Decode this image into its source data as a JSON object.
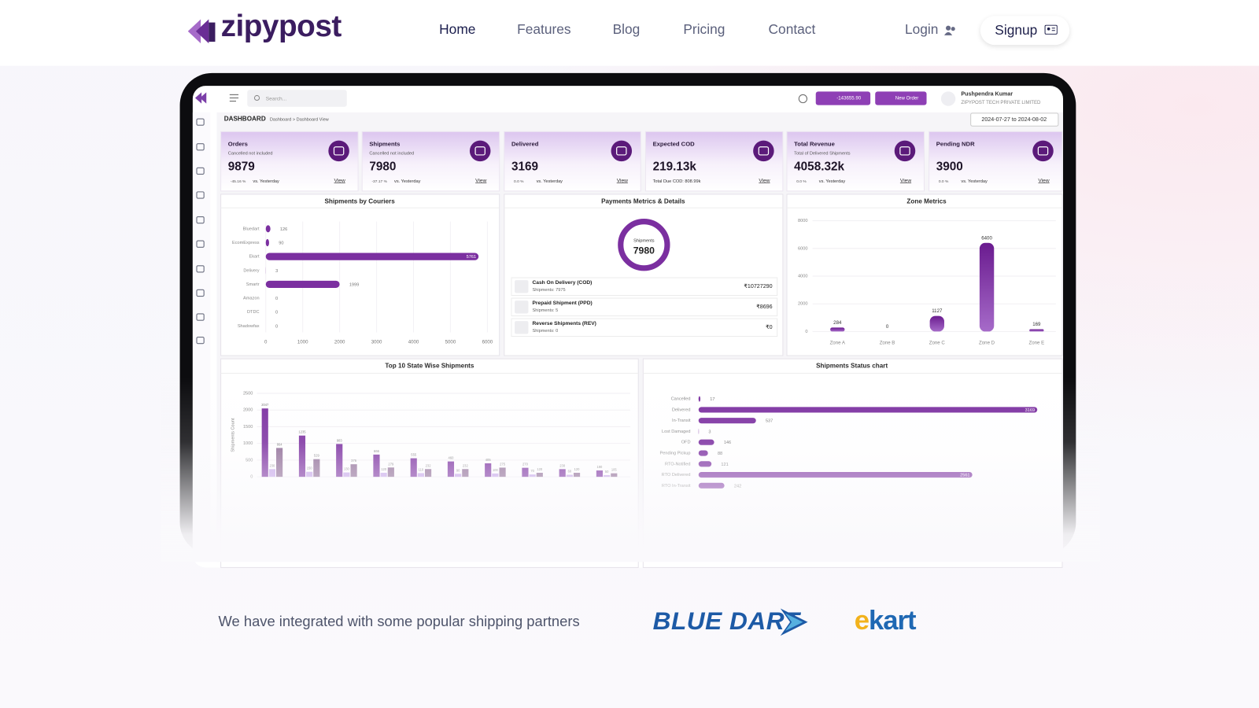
{
  "header": {
    "logo": "zipypost",
    "nav": [
      "Home",
      "Features",
      "Blog",
      "Pricing",
      "Contact"
    ],
    "login": "Login",
    "signup": "Signup"
  },
  "dashboard": {
    "search": "Search...",
    "wallet": "-143655.90",
    "new_order": "New Order",
    "user": "Pushpendra Kumar",
    "company": "ZIPYPOST TECH PRIVATE LIMITED",
    "title": "DASHBOARD",
    "breadcrumb": "Dashboard > Dashboard View",
    "date_range": "2024-07-27 to 2024-08-02",
    "cards": [
      {
        "title": "Orders",
        "subtitle": "Cancelled not included",
        "value": "9879",
        "change": "-45.16 %",
        "compare": "vs. Yesterday",
        "link": "View"
      },
      {
        "title": "Shipments",
        "subtitle": "Cancelled not included",
        "value": "7980",
        "change": "-37.17 %",
        "compare": "vs. Yesterday",
        "link": "View"
      },
      {
        "title": "Delivered",
        "value": "3169",
        "change": "0.0 %",
        "compare": "vs. Yesterday",
        "link": "View"
      },
      {
        "title": "Expected COD",
        "value": "219.13k",
        "note": "Total Due COD: 808.99k",
        "link": "View"
      },
      {
        "title": "Total Revenue",
        "subtitle": "Total of Delivered Shipments",
        "value": "4058.32k",
        "change": "0.0 %",
        "compare": "vs. Yesterday",
        "link": "View"
      },
      {
        "title": "Pending NDR",
        "value": "3900",
        "change": "0.0 %",
        "compare": "vs. Yesterday",
        "link": "View"
      }
    ],
    "couriers": {
      "type": "bar",
      "title": "Shipments by Couriers",
      "categories": [
        "Bluedart",
        "EcomExpress",
        "Ekart",
        "Delivery",
        "Smartr",
        "Amazon",
        "DTDC",
        "Shadowfax"
      ],
      "values": [
        126,
        90,
        5761,
        3,
        1999,
        0,
        0,
        0
      ],
      "color": "#7b2fa0",
      "xlim": [
        0,
        6000
      ],
      "xticks": [
        0,
        1000,
        2000,
        3000,
        4000,
        5000,
        6000
      ]
    },
    "payments": {
      "type": "donut",
      "title": "Payments Metrics & Details",
      "center_label": "Shipments",
      "center_value": "7980",
      "rows": [
        {
          "name": "Cash On Delivery (COD)",
          "shipments": "Shipments: 7975",
          "amount": "₹10727290"
        },
        {
          "name": "Prepaid Shipment (PPD)",
          "shipments": "Shipments: 5",
          "amount": "₹8696"
        },
        {
          "name": "Reverse Shipments (REV)",
          "shipments": "Shipments: 0",
          "amount": "₹0"
        }
      ]
    },
    "zones": {
      "type": "bar",
      "title": "Zone Metrics",
      "categories": [
        "Zone A",
        "Zone B",
        "Zone C",
        "Zone D",
        "Zone E"
      ],
      "values": [
        284,
        0,
        1127,
        6400,
        169
      ],
      "color": "#7b2fa0",
      "ylim": [
        0,
        8000
      ],
      "yticks": [
        0,
        2000,
        4000,
        6000,
        8000
      ]
    },
    "states": {
      "type": "grouped_bar",
      "title": "Top 10 State Wise Shipments",
      "y_label": "Shipments Count",
      "categories": [
        null,
        null,
        null,
        null,
        null,
        null,
        null,
        null,
        null,
        null
      ],
      "series": [
        {
          "color": "#7b2fa0",
          "values": [
            2047,
            1235,
            983,
            666,
            555,
            460,
            405,
            270,
            230,
            190
          ]
        },
        {
          "color": "#c6a6ea",
          "values": [
            230,
            150,
            130,
            120,
            110,
            90,
            100,
            70,
            60,
            50
          ]
        },
        {
          "color": "#8d6a94",
          "values": [
            864,
            529,
            376,
            279,
            232,
            232,
            275,
            120,
            120,
            105
          ]
        }
      ],
      "ylim": [
        0,
        2500
      ],
      "yticks": [
        0,
        500,
        1000,
        1500,
        2000,
        2500
      ]
    },
    "status": {
      "type": "bar",
      "title": "Shipments Status chart",
      "categories": [
        "Cancelled",
        "Delivered",
        "In-Transit",
        "Lost Damaged",
        "OFD",
        "Pending Pickup",
        "RTO-Notified",
        "RTO Delivered",
        "RTO In-Transit"
      ],
      "values": [
        17,
        3169,
        537,
        3,
        146,
        88,
        121,
        2561,
        242
      ],
      "color": "#7b2fa0",
      "xlim": [
        0,
        3200
      ]
    }
  },
  "partners": {
    "text": "We have integrated with some popular shipping partners",
    "logos": [
      "BLUE DART",
      "ekart"
    ]
  }
}
